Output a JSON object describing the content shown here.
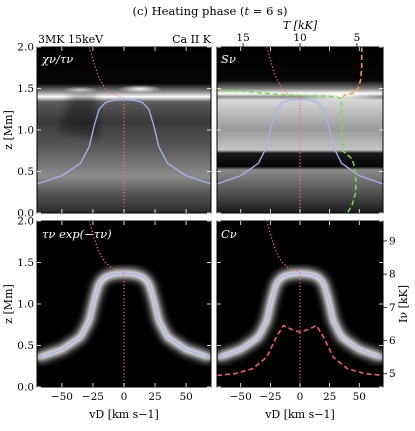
{
  "figure": {
    "title": "(c) Heating phase (t = 6 s)",
    "title_prefix": "(c) Heating phase (",
    "title_var": "t",
    "title_suffix": " = 6 s)",
    "colors": {
      "background": "#000000",
      "lavender": "#a9b2f0",
      "dotted_red": "#ff6f5a",
      "orange": "#ffa040",
      "green": "#7ed957",
      "pink": "#ff4f7b"
    }
  },
  "chart_data": [
    {
      "type": "heatmap",
      "panel": "top-left",
      "label": "χν/τν",
      "annotation_left": "3MK 15keV",
      "x": {
        "label": "",
        "lim": [
          -70,
          70
        ],
        "ticks": [
          -50,
          -25,
          0,
          25,
          50
        ]
      },
      "y": {
        "label": "z [Mm]",
        "lim": [
          0,
          2.0
        ],
        "ticks": [
          0.0,
          0.5,
          1.0,
          1.5,
          2.0
        ]
      },
      "series": [
        {
          "style": "lavender-solid",
          "x": [
            -70,
            -50,
            -35,
            -28,
            -24,
            -20,
            -15,
            -8,
            0,
            8,
            15,
            20,
            24,
            28,
            35,
            50,
            70
          ],
          "y": [
            0.35,
            0.45,
            0.6,
            0.8,
            1.05,
            1.25,
            1.33,
            1.36,
            1.37,
            1.36,
            1.33,
            1.25,
            1.05,
            0.8,
            0.6,
            0.45,
            0.35
          ]
        },
        {
          "style": "red-dotted",
          "x": [
            -28,
            -24,
            -20,
            -15,
            -10,
            -5,
            -2,
            0,
            0,
            0
          ],
          "y": [
            2.0,
            1.8,
            1.62,
            1.5,
            1.44,
            1.41,
            1.39,
            1.38,
            0.5,
            0.0
          ]
        }
      ]
    },
    {
      "type": "heatmap",
      "panel": "top-right",
      "label": "Sν",
      "annotation_left": "Ca II K",
      "x": {
        "label": "",
        "lim": [
          -70,
          70
        ],
        "ticks": [
          -50,
          -25,
          0,
          25,
          50
        ]
      },
      "y": {
        "label": "",
        "lim": [
          0,
          2.0
        ],
        "ticks": [
          0.0,
          0.5,
          1.0,
          1.5,
          2.0
        ]
      },
      "x2": {
        "label": "T [kK]",
        "ticks": [
          15,
          10,
          5
        ],
        "tick_positions_vD": [
          -48,
          0,
          48
        ]
      },
      "series": [
        {
          "style": "lavender-solid",
          "x": [
            -70,
            -50,
            -35,
            -28,
            -24,
            -20,
            -15,
            -8,
            0,
            8,
            15,
            20,
            24,
            28,
            35,
            50,
            70
          ],
          "y": [
            0.35,
            0.45,
            0.6,
            0.8,
            1.05,
            1.25,
            1.33,
            1.36,
            1.37,
            1.36,
            1.33,
            1.25,
            1.05,
            0.8,
            0.6,
            0.45,
            0.35
          ]
        },
        {
          "style": "red-dotted",
          "x": [
            -28,
            -24,
            -20,
            -15,
            -10,
            -5,
            -2,
            0,
            0,
            0
          ],
          "y": [
            2.0,
            1.8,
            1.62,
            1.5,
            1.44,
            1.41,
            1.39,
            1.38,
            0.5,
            0.0
          ]
        },
        {
          "style": "orange-dashed",
          "x": [
            52,
            52,
            51,
            49,
            46,
            38,
            36
          ],
          "y": [
            2.0,
            1.75,
            1.6,
            1.5,
            1.45,
            1.42,
            1.4
          ]
        },
        {
          "style": "green-dashed",
          "x": [
            -70,
            -50,
            -35,
            -20,
            -5,
            5,
            20,
            30,
            35,
            35,
            36,
            40,
            44,
            46,
            47,
            47,
            44,
            40
          ],
          "y": [
            1.48,
            1.47,
            1.45,
            1.43,
            1.42,
            1.41,
            1.41,
            1.4,
            1.38,
            1.15,
            0.75,
            0.7,
            0.65,
            0.55,
            0.4,
            0.25,
            0.1,
            0.0
          ]
        }
      ]
    },
    {
      "type": "heatmap",
      "panel": "bottom-left",
      "label": "τν exp(−τν)",
      "x": {
        "label": "vD [km s−1]",
        "lim": [
          -70,
          70
        ],
        "ticks": [
          -50,
          -25,
          0,
          25,
          50
        ]
      },
      "y": {
        "label": "z [Mm]",
        "lim": [
          0,
          2.0
        ],
        "ticks": [
          0.0,
          0.5,
          1.0,
          1.5,
          2.0
        ]
      },
      "series": [
        {
          "style": "lavender-solid",
          "x": [
            -70,
            -50,
            -35,
            -28,
            -24,
            -20,
            -15,
            -8,
            0,
            8,
            15,
            20,
            24,
            28,
            35,
            50,
            70
          ],
          "y": [
            0.35,
            0.45,
            0.6,
            0.8,
            1.05,
            1.25,
            1.33,
            1.36,
            1.37,
            1.36,
            1.33,
            1.25,
            1.05,
            0.8,
            0.6,
            0.45,
            0.35
          ]
        },
        {
          "style": "red-dotted",
          "x": [
            -28,
            -24,
            -20,
            -15,
            -10,
            -5,
            -2,
            0,
            0,
            0
          ],
          "y": [
            2.0,
            1.8,
            1.62,
            1.5,
            1.44,
            1.41,
            1.39,
            1.38,
            0.5,
            0.0
          ]
        }
      ]
    },
    {
      "type": "heatmap",
      "panel": "bottom-right",
      "label": "Cν",
      "x": {
        "label": "vD [km s−1]",
        "lim": [
          -70,
          70
        ],
        "ticks": [
          -50,
          -25,
          0,
          25,
          50
        ]
      },
      "y": {
        "label": "",
        "lim": [
          0,
          2.0
        ],
        "ticks": [
          0.0,
          0.5,
          1.0,
          1.5,
          2.0
        ]
      },
      "y2": {
        "label": "Iν [kK]",
        "ticks": [
          5,
          6,
          7,
          8,
          9
        ],
        "lim": [
          4.6,
          9.6
        ]
      },
      "series": [
        {
          "style": "lavender-solid",
          "x": [
            -70,
            -50,
            -35,
            -28,
            -24,
            -20,
            -15,
            -8,
            0,
            8,
            15,
            20,
            24,
            28,
            35,
            50,
            70
          ],
          "y": [
            0.35,
            0.45,
            0.6,
            0.8,
            1.05,
            1.25,
            1.33,
            1.36,
            1.37,
            1.36,
            1.33,
            1.25,
            1.05,
            0.8,
            0.6,
            0.45,
            0.35
          ]
        },
        {
          "style": "red-dotted",
          "x": [
            -28,
            -24,
            -20,
            -15,
            -10,
            -5,
            -2,
            0,
            0,
            0
          ],
          "y": [
            2.0,
            1.8,
            1.62,
            1.5,
            1.44,
            1.41,
            1.39,
            1.38,
            0.5,
            0.0
          ]
        },
        {
          "style": "pink-dashed",
          "x": [
            -70,
            -55,
            -40,
            -28,
            -20,
            -14,
            -8,
            -4,
            0,
            4,
            8,
            14,
            20,
            28,
            40,
            55,
            70
          ],
          "y2": [
            4.95,
            5.0,
            5.15,
            5.5,
            6.1,
            6.45,
            6.35,
            6.3,
            6.25,
            6.3,
            6.35,
            6.45,
            6.1,
            5.5,
            5.15,
            5.0,
            4.95
          ]
        }
      ]
    }
  ]
}
